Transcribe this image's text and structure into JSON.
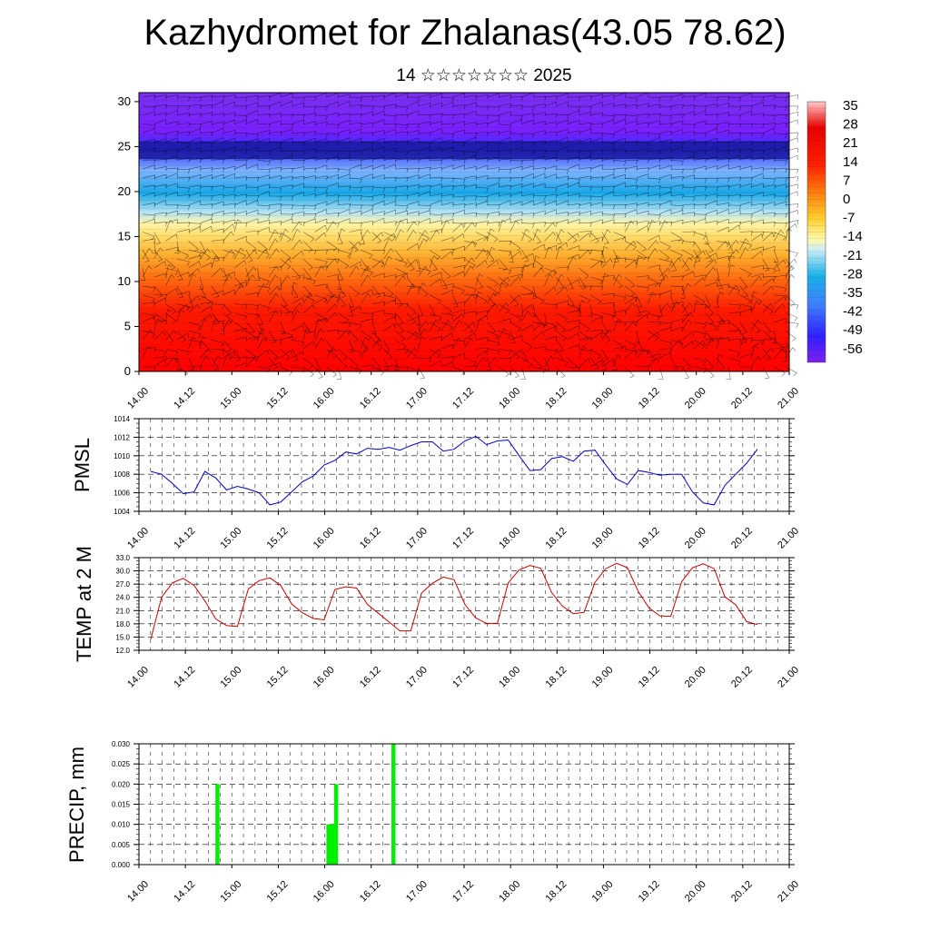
{
  "header": {
    "title": "Kazhydromet for Zhalanas(43.05 78.62)",
    "subtitle": "14 ☆☆☆☆☆☆☆ 2025"
  },
  "time_ticks": [
    "14.00",
    "14.12",
    "15.00",
    "15.12",
    "16.00",
    "16.12",
    "17.00",
    "17.12",
    "18.00",
    "18.12",
    "19.00",
    "19.12",
    "20.00",
    "20.12",
    "21.00"
  ],
  "chart_data": [
    {
      "type": "heatmap",
      "name": "upper-air-cross-section",
      "ylim": [
        0,
        31
      ],
      "y_ticks": [
        "0",
        "5",
        "10",
        "15",
        "20",
        "25",
        "30"
      ],
      "colorbar_labels": [
        "35",
        "28",
        "21",
        "14",
        "7",
        "0",
        "-7",
        "-14",
        "-21",
        "-28",
        "-35",
        "-42",
        "-49",
        "-56"
      ],
      "colormap": [
        "#1a1a9e",
        "#3030ff",
        "#7fb3ff",
        "#18a8e8",
        "#a8dcf0",
        "#fff5a8",
        "#ffd54a",
        "#ffb030",
        "#ff7a10",
        "#ff3a00",
        "#ff0000",
        "#e80000",
        "#ffc0c0"
      ],
      "colorscale_direction": "bottom-warm-top-cold",
      "wind_barbs": true
    },
    {
      "type": "line",
      "name": "pmsl",
      "ylabel": "PMSL",
      "ylim": [
        1004,
        1014
      ],
      "y_ticks": [
        "1004",
        "1006",
        "1008",
        "1010",
        "1012",
        "1014"
      ],
      "color": "#0000cc",
      "values": [
        1008.3,
        1008.0,
        1007.0,
        1005.9,
        1006.1,
        1008.3,
        1007.6,
        1006.3,
        1006.7,
        1006.4,
        1006.0,
        1004.7,
        1005.0,
        1006.1,
        1007.2,
        1007.8,
        1009.0,
        1009.5,
        1010.4,
        1010.2,
        1010.8,
        1010.7,
        1010.9,
        1010.6,
        1011.1,
        1011.5,
        1011.5,
        1010.5,
        1010.7,
        1011.6,
        1012.1,
        1011.2,
        1011.6,
        1011.7,
        1010.0,
        1008.4,
        1008.5,
        1009.7,
        1009.9,
        1009.4,
        1010.5,
        1010.6,
        1009.0,
        1007.5,
        1006.9,
        1008.4,
        1008.2,
        1007.9,
        1008.0,
        1008.0,
        1006.1,
        1004.9,
        1004.7,
        1006.8,
        1008.0,
        1009.2,
        1010.7
      ]
    },
    {
      "type": "line",
      "name": "temp-2m",
      "ylabel": "TEMP at 2 M",
      "ylim": [
        12,
        33
      ],
      "y_ticks": [
        "12.0",
        "15.0",
        "18.0",
        "21.0",
        "24.0",
        "27.0",
        "30.0",
        "33.0"
      ],
      "color": "#cc0000",
      "values": [
        14.5,
        24.0,
        27.3,
        28.3,
        26.7,
        23.2,
        19.1,
        17.6,
        17.4,
        25.9,
        27.8,
        28.4,
        26.7,
        22.5,
        20.5,
        19.2,
        18.9,
        25.8,
        26.4,
        26.1,
        22.4,
        20.4,
        18.4,
        16.4,
        16.4,
        25.0,
        27.2,
        28.6,
        28.0,
        22.4,
        19.3,
        18.1,
        18.1,
        27.3,
        30.2,
        31.2,
        30.6,
        25.1,
        22.0,
        20.3,
        20.6,
        27.4,
        30.5,
        31.7,
        30.7,
        25.3,
        21.6,
        19.8,
        19.7,
        27.5,
        30.7,
        31.6,
        30.5,
        24.1,
        22.3,
        18.5,
        17.8
      ]
    },
    {
      "type": "bar",
      "name": "precip",
      "ylabel": "PRECIP, mm",
      "ylim": [
        0,
        0.03
      ],
      "y_ticks": [
        "0.000",
        "0.005",
        "0.010",
        "0.015",
        "0.020",
        "0.025",
        "0.030"
      ],
      "color": "#00ee00",
      "values": [
        0,
        0,
        0,
        0,
        0,
        0,
        0,
        0,
        0,
        0,
        0,
        0,
        0,
        0,
        0,
        0,
        0,
        0,
        0,
        0,
        0.02,
        0,
        0,
        0,
        0,
        0,
        0,
        0,
        0,
        0,
        0,
        0,
        0,
        0,
        0,
        0,
        0,
        0,
        0,
        0,
        0,
        0,
        0,
        0,
        0,
        0,
        0,
        0,
        0,
        0.01,
        0.01,
        0.02,
        0,
        0,
        0,
        0,
        0,
        0,
        0,
        0,
        0,
        0,
        0,
        0,
        0,
        0,
        0.03,
        0,
        0,
        0,
        0,
        0,
        0,
        0,
        0,
        0,
        0,
        0,
        0,
        0,
        0,
        0,
        0,
        0,
        0,
        0,
        0,
        0,
        0,
        0,
        0,
        0,
        0,
        0,
        0,
        0,
        0,
        0,
        0,
        0,
        0,
        0,
        0,
        0,
        0,
        0,
        0,
        0,
        0,
        0,
        0,
        0,
        0,
        0,
        0,
        0,
        0,
        0,
        0,
        0,
        0,
        0,
        0,
        0,
        0,
        0,
        0,
        0,
        0,
        0,
        0,
        0,
        0,
        0,
        0,
        0,
        0,
        0,
        0,
        0,
        0,
        0,
        0,
        0,
        0,
        0,
        0,
        0,
        0,
        0,
        0,
        0,
        0,
        0,
        0,
        0,
        0,
        0,
        0,
        0,
        0,
        0,
        0,
        0,
        0,
        0,
        0,
        0,
        0,
        0
      ]
    }
  ]
}
